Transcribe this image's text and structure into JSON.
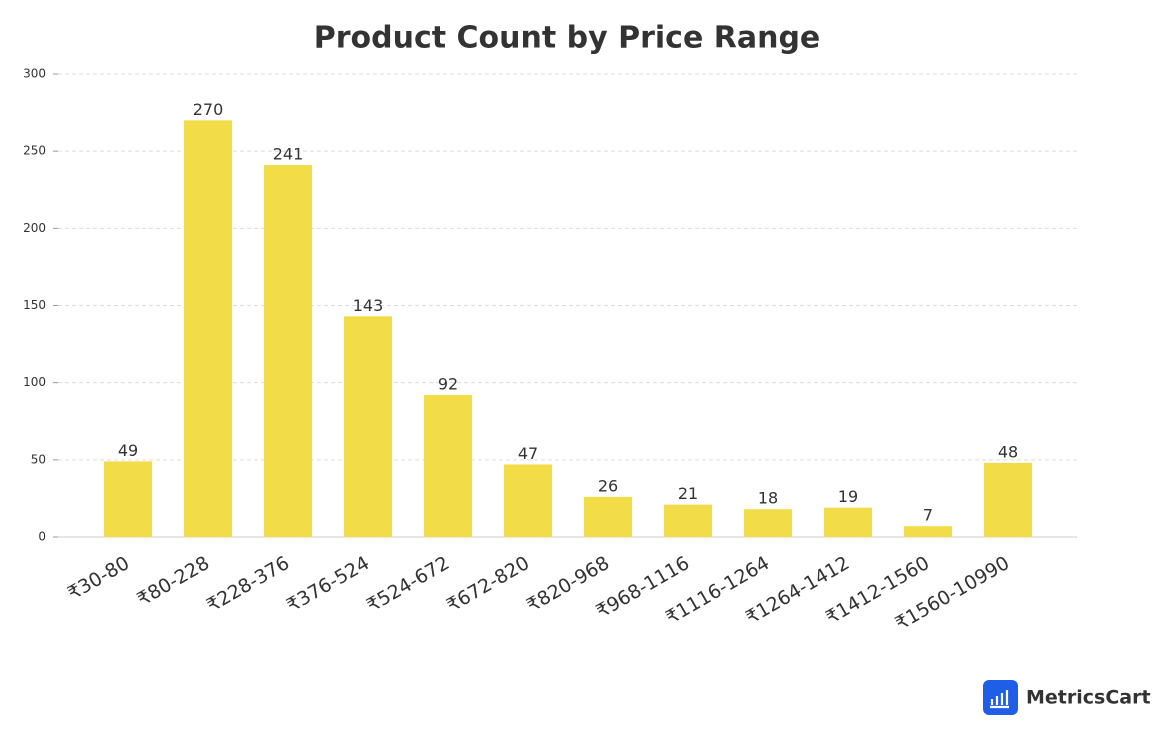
{
  "chart_data": {
    "type": "bar",
    "title": "Product Count by Price Range",
    "categories": [
      "₹30-80",
      "₹80-228",
      "₹228-376",
      "₹376-524",
      "₹524-672",
      "₹672-820",
      "₹820-968",
      "₹968-1116",
      "₹1116-1264",
      "₹1264-1412",
      "₹1412-1560",
      "₹1560-10990"
    ],
    "values": [
      49,
      270,
      241,
      143,
      92,
      47,
      26,
      21,
      18,
      19,
      7,
      48
    ],
    "color": "#f2dd48",
    "ylim": [
      0,
      300
    ],
    "yticks": [
      0,
      50,
      100,
      150,
      200,
      250,
      300
    ],
    "grid": true
  },
  "branding": "MetricsCart"
}
